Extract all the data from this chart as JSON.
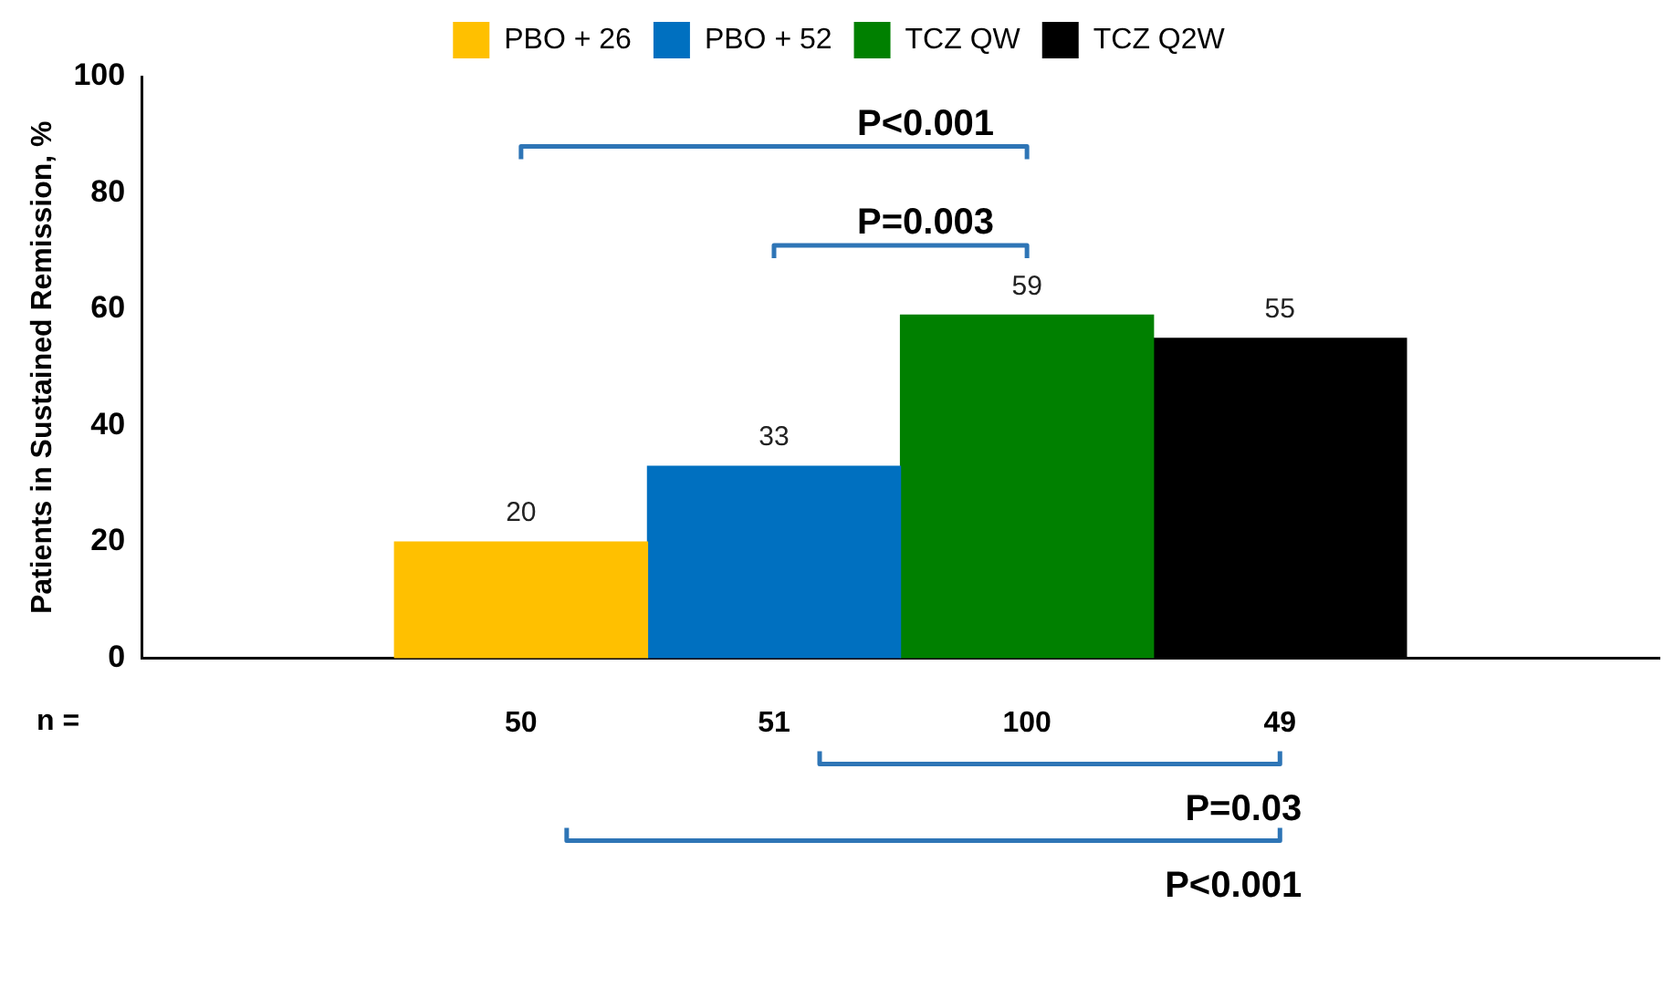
{
  "chart_data": {
    "type": "bar",
    "stacked": true,
    "categories": [
      null,
      "50",
      "51",
      "100",
      "49",
      null
    ],
    "xlabel": "n =",
    "ylabel": "Patients in Sustained Remission, %",
    "ylim": [
      0,
      100
    ],
    "yticks": [
      0,
      20,
      40,
      60,
      80,
      100
    ],
    "grid": false,
    "legend": "top",
    "data_labels": true,
    "series": [
      {
        "name": "PBO + 26",
        "color": "#ffc000",
        "values": [
          null,
          20,
          null,
          null,
          null,
          null
        ]
      },
      {
        "name": "PBO + 52",
        "color": "#0070c0",
        "values": [
          null,
          null,
          33,
          null,
          null,
          null
        ]
      },
      {
        "name": "TCZ QW",
        "color": "#008000",
        "values": [
          null,
          null,
          null,
          59,
          null,
          null
        ]
      },
      {
        "name": "TCZ Q2W",
        "color": "#000000",
        "values": [
          null,
          null,
          null,
          null,
          55,
          null
        ]
      }
    ],
    "annotations": [
      "P<0.001",
      "P=0.003",
      "P=0.03",
      "P<0.001"
    ]
  }
}
